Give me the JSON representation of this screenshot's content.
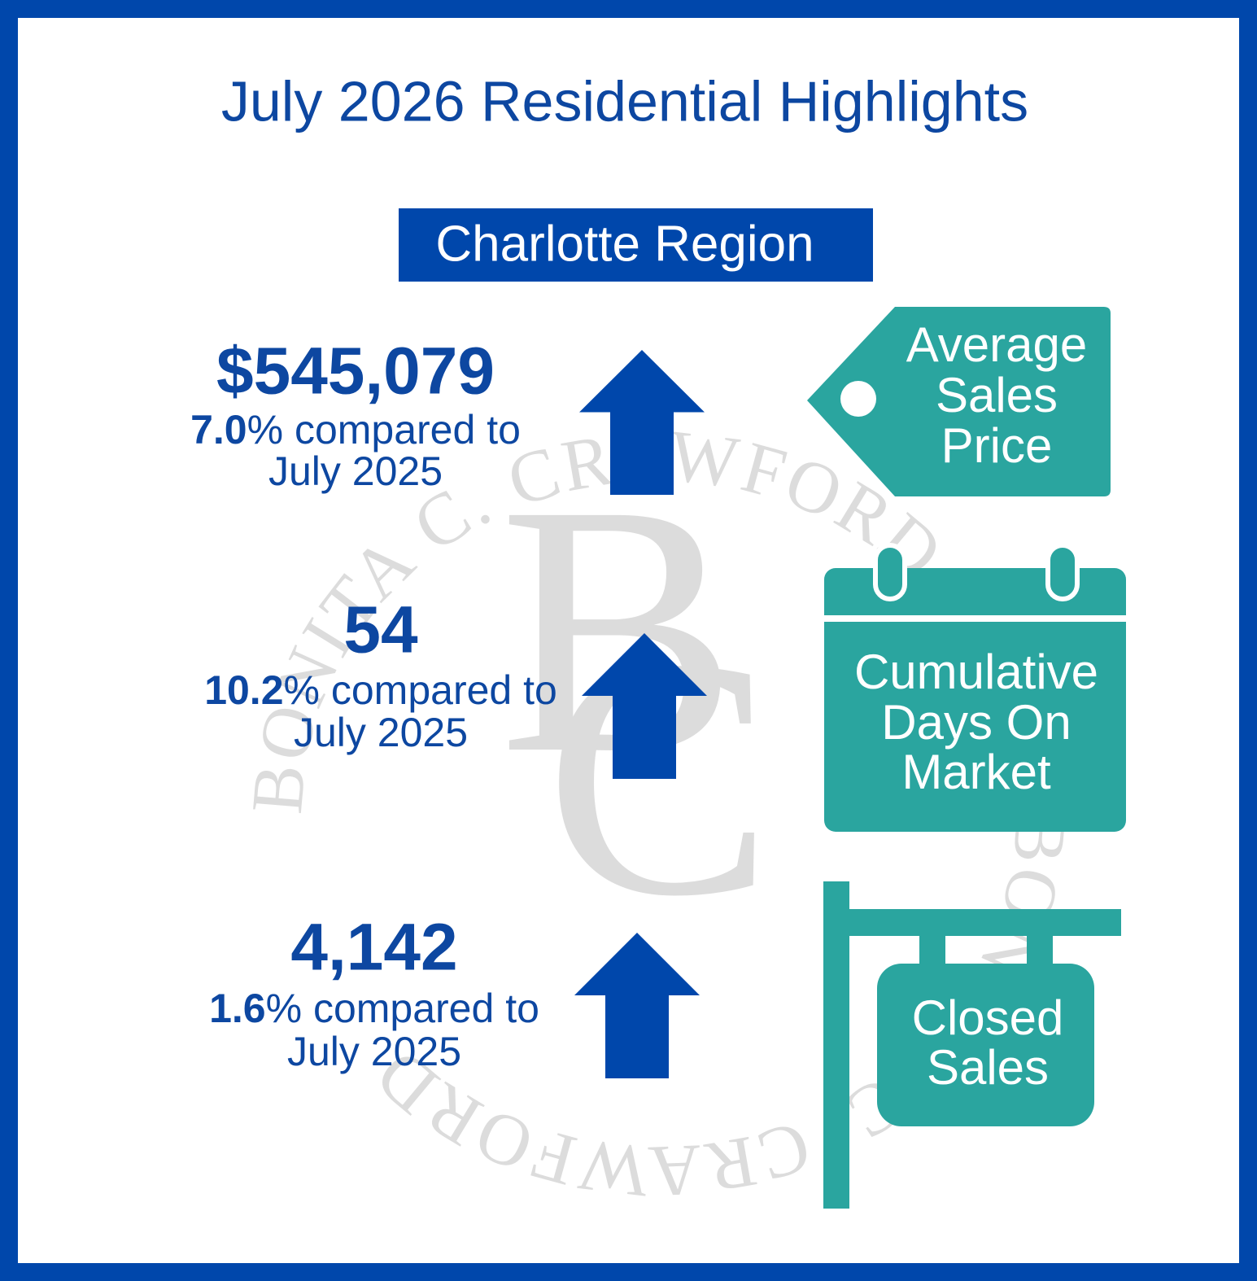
{
  "header": {
    "title": "July 2026 Residential Highlights",
    "region": "Charlotte Region"
  },
  "watermark": {
    "monogram_top": "B",
    "monogram_bottom": "C",
    "ring_text": "BONITA C. CRAWFORD"
  },
  "metrics": [
    {
      "value": "$545,079",
      "change": "7.0",
      "comparison": "% compared to",
      "period": "July 2025",
      "label": [
        "Average",
        "Sales",
        "Price"
      ]
    },
    {
      "value": "54",
      "change": "10.2",
      "comparison": "% compared to",
      "period": "July 2025",
      "label": [
        "Cumulative",
        "Days On",
        "Market"
      ]
    },
    {
      "value": "4,142",
      "change": "1.6",
      "comparison": "% compared to",
      "period": "July 2025",
      "label": [
        "Closed",
        "Sales"
      ]
    }
  ]
}
